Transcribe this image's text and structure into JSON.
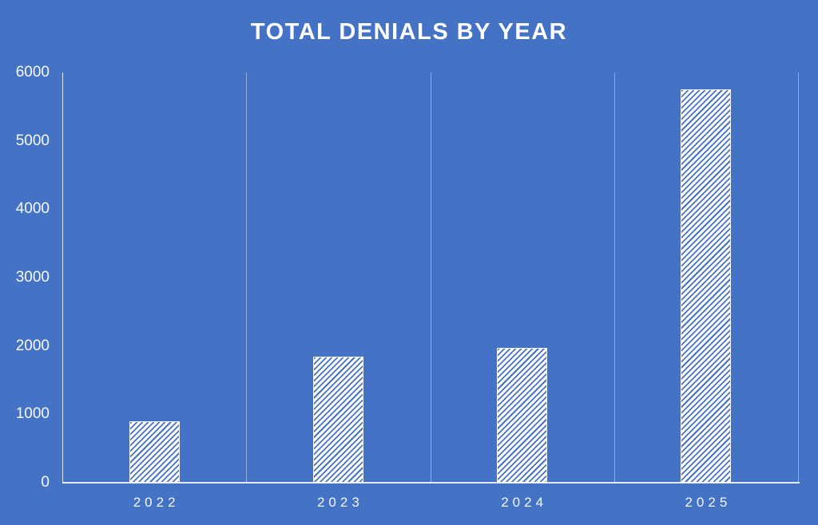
{
  "chart_data": {
    "type": "bar",
    "title": "TOTAL DENIALS BY YEAR",
    "categories": [
      "2022",
      "2023",
      "2024",
      "2025"
    ],
    "values": [
      900,
      1850,
      1970,
      5750
    ],
    "xlabel": "",
    "ylabel": "",
    "ylim": [
      0,
      6000
    ],
    "yticks": [
      0,
      1000,
      2000,
      3000,
      4000,
      5000,
      6000
    ],
    "grid": "vertical category boundary lines on",
    "legend_position": "none",
    "bar_fill": "white with diagonal-up hatch pattern",
    "colors": {
      "background": "#4472C4",
      "bar_base": "#FFFFFF",
      "bar_hatch": "#4472C4",
      "gridline": "rgba(255,255,255,0.42)",
      "axis_line": "rgba(255,255,255,0.85)",
      "text": "#FFFFFF"
    }
  }
}
